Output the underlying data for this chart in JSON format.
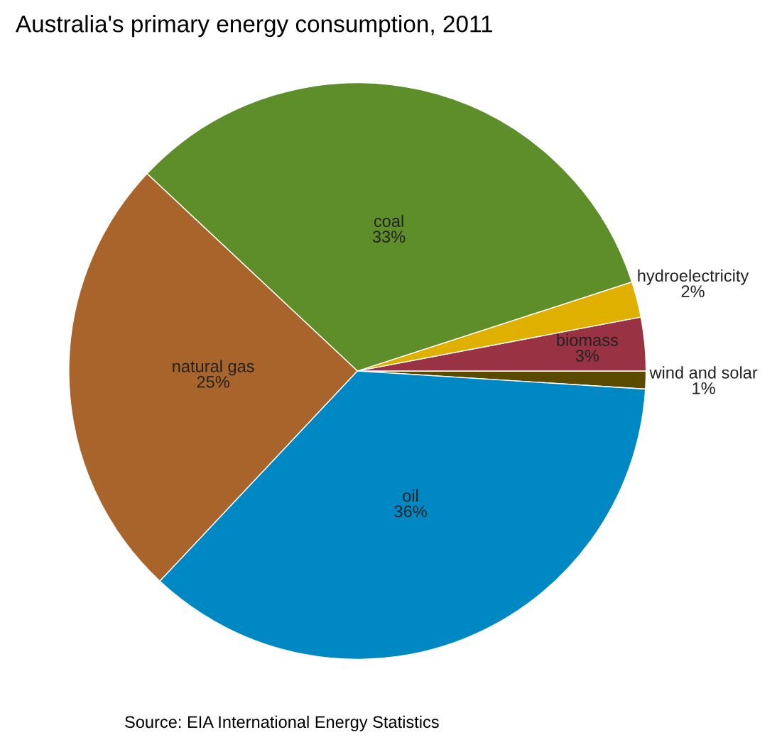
{
  "chart_data": {
    "type": "pie",
    "title": "Australia's primary energy consumption, 2011",
    "categories": [
      "wind and solar",
      "biomass",
      "hydroelectricity",
      "coal",
      "natural gas",
      "oil"
    ],
    "values": [
      1,
      3,
      2,
      33,
      25,
      36
    ],
    "value_labels": [
      "1%",
      "3%",
      "2%",
      "33%",
      "25%",
      "36%"
    ],
    "colors": [
      "#5a4a00",
      "#993344",
      "#e0b000",
      "#5e8e2a",
      "#a8642a",
      "#0088c4"
    ],
    "legend": false,
    "annotations": [
      "Source: EIA International Energy Statistics"
    ]
  }
}
